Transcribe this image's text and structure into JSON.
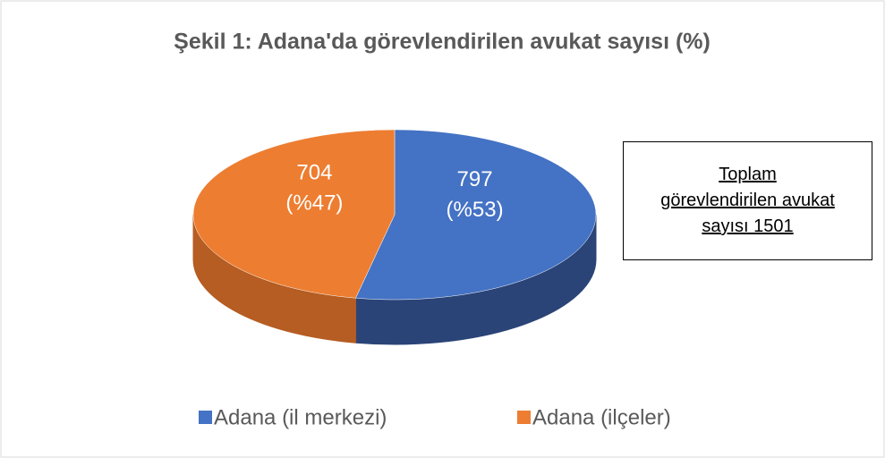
{
  "chart_data": {
    "type": "pie3d",
    "title": "Şekil 1: Adana'da görevlendirilen avukat sayısı (%)",
    "categories": [
      "Adana (il merkezi)",
      "Adana (ilçeler)"
    ],
    "values": [
      797,
      704
    ],
    "percent_labels": [
      "(%53)",
      "(%47)"
    ],
    "colors": [
      "#4472c4",
      "#ed7d31"
    ],
    "side_colors": [
      "#2a4478",
      "#b55d22"
    ],
    "legend": "bottom",
    "annotation": "Toplam görevlendirilen avukat sayısı 1501"
  }
}
